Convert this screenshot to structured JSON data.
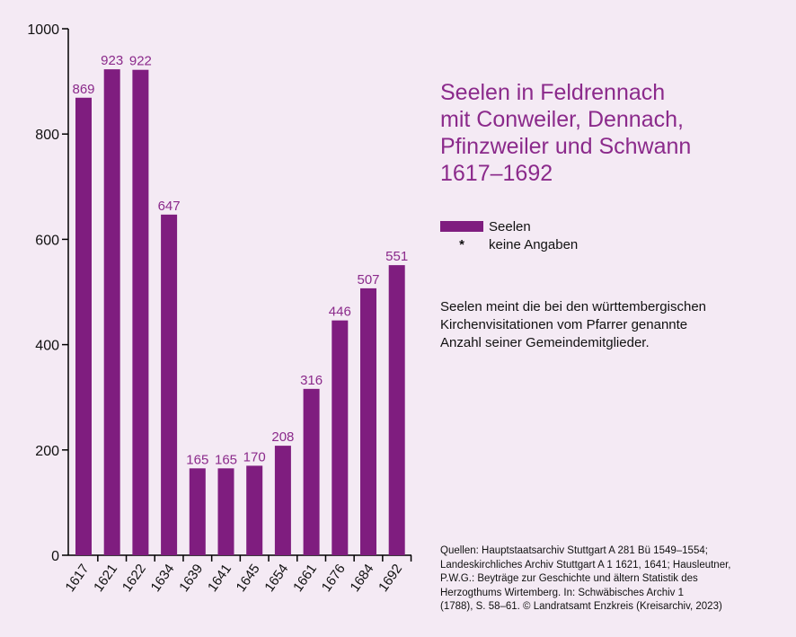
{
  "title_lines": [
    "Seelen in Feldrennach",
    "mit Conweiler, Dennach,",
    "Pfinzweiler und Schwann",
    "1617–1692"
  ],
  "legend": {
    "series_label": "Seelen",
    "missing_symbol": "*",
    "missing_label": "keine Angaben"
  },
  "note_lines": [
    "Seelen meint die bei den württembergischen",
    "Kirchenvisitationen vom Pfarrer genannte",
    "Anzahl seiner Gemeindemitglieder."
  ],
  "source_lines": [
    "Quellen: Hauptstaatsarchiv Stuttgart A 281 Bü 1549–1554;",
    "Landeskirchliches Archiv Stuttgart A 1 1621, 1641; Hausleutner,",
    "P.W.G.: Beyträge zur Geschichte und ältern Statistik des",
    "Herzogthums Wirtemberg. In: Schwäbisches Archiv 1",
    "(1788), S. 58–61. © Landratsamt Enzkreis (Kreisarchiv, 2023)"
  ],
  "colors": {
    "bar": "#7f1d7f",
    "label": "#8b2a8b",
    "background": "#f4eaf4"
  },
  "chart_data": {
    "type": "bar",
    "categories": [
      "1617",
      "1621",
      "1622",
      "1634",
      "1639",
      "1641",
      "1645",
      "1654",
      "1661",
      "1676",
      "1684",
      "1692"
    ],
    "series": [
      {
        "name": "Seelen",
        "values": [
          869,
          923,
          922,
          647,
          165,
          165,
          170,
          208,
          316,
          446,
          507,
          551
        ]
      }
    ],
    "data_labels": [
      "869",
      "923",
      "922",
      "647",
      "165",
      "165",
      "170",
      "208",
      "316",
      "446",
      "507",
      "551"
    ],
    "ylim": [
      0,
      1000
    ],
    "yticks": [
      0,
      200,
      400,
      600,
      800,
      1000
    ],
    "grid": false,
    "legend_position": "right"
  }
}
